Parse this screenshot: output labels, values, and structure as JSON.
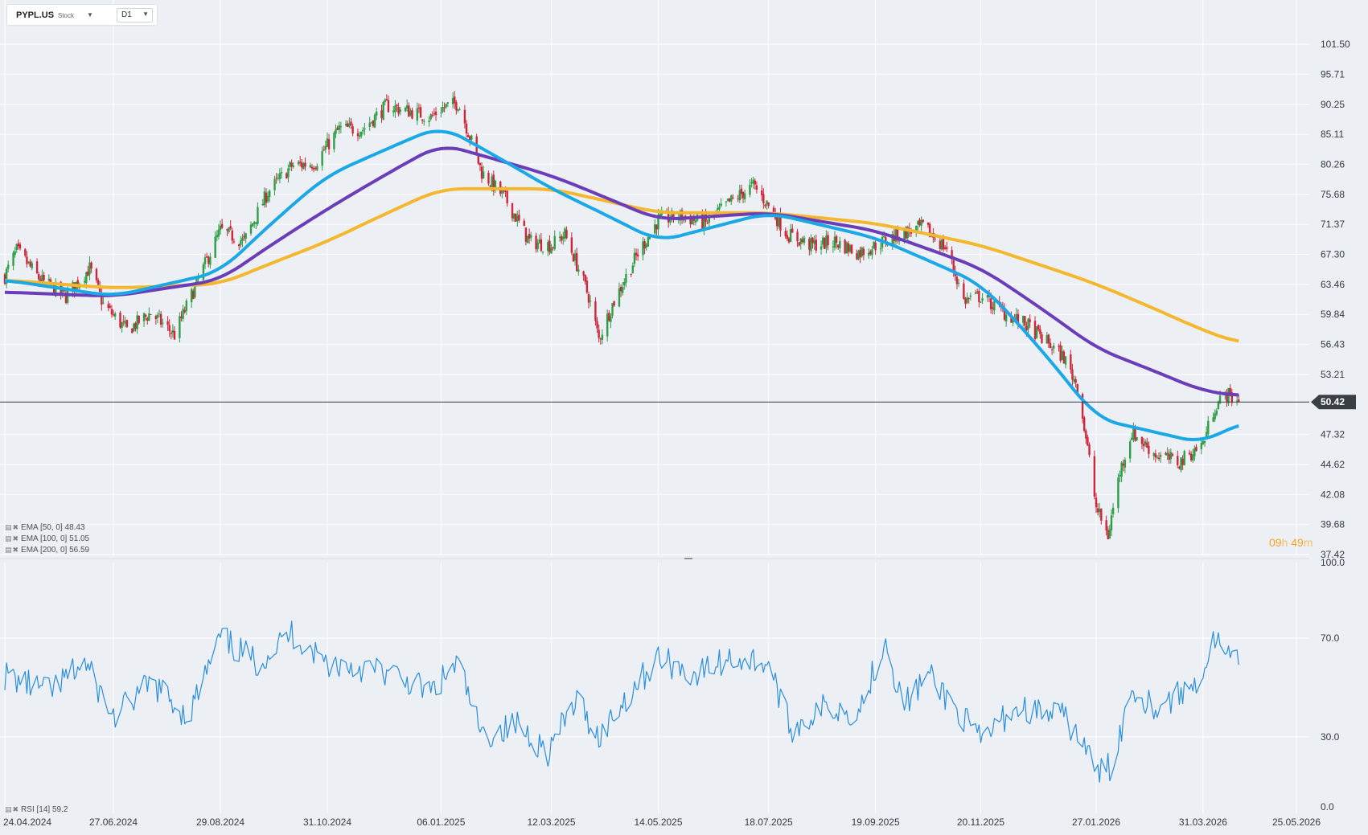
{
  "header": {
    "symbol": "PYPL.US",
    "asset_type": "Stock",
    "timeframe": "D1"
  },
  "price_axis": {
    "ticks": [
      "101.50",
      "95.71",
      "90.25",
      "85.11",
      "80.26",
      "75.68",
      "71.37",
      "67.30",
      "63.46",
      "59.84",
      "56.43",
      "53.21",
      "47.32",
      "44.62",
      "42.08",
      "39.68",
      "37.42"
    ],
    "tick_values": [
      101.5,
      95.71,
      90.25,
      85.11,
      80.26,
      75.68,
      71.37,
      67.3,
      63.46,
      59.84,
      56.43,
      53.21,
      47.32,
      44.62,
      42.08,
      39.68,
      37.42
    ],
    "scale": "log"
  },
  "current_price": {
    "label": "50.42",
    "value": 50.42
  },
  "countdown": {
    "hours": "09",
    "h_unit": "h",
    "minutes": "49",
    "m_unit": "m"
  },
  "legend": {
    "ema50": "EMA [50, 0] 48.43",
    "ema100": "EMA [100, 0] 51.05",
    "ema200": "EMA [200, 0] 56.59",
    "rsi": "RSI [14] 59.2"
  },
  "rsi_axis": {
    "ticks": [
      "100.0",
      "70.0",
      "30.0",
      "0.0"
    ],
    "tick_values": [
      100,
      70,
      30,
      0
    ]
  },
  "date_axis": {
    "labels": [
      "24.04.2024",
      "27.06.2024",
      "29.08.2024",
      "31.10.2024",
      "06.01.2025",
      "12.03.2025",
      "14.05.2025",
      "18.07.2025",
      "19.09.2025",
      "20.11.2025",
      "27.01.2026",
      "31.03.2026",
      "25.05.2026"
    ]
  },
  "colors": {
    "background": "#eceff3",
    "grid": "#ffffff",
    "candle_up": "#2e9e47",
    "candle_down": "#d0263c",
    "ema50": "#1ba8e6",
    "ema100": "#6b3db8",
    "ema200": "#f5b72e",
    "rsi_line": "#2b8fe0",
    "price_marker": "#3a3f46",
    "countdown": "#f5a623"
  },
  "chart_data": {
    "type": "candlestick",
    "interval": "D1",
    "x_start": "24.04.2024",
    "x_end": "25.05.2026",
    "last_price": 50.42,
    "price_path": [
      [
        "24.04.2024",
        64.5
      ],
      [
        "01.05.2024",
        67.8
      ],
      [
        "15.05.2024",
        64.0
      ],
      [
        "30.05.2024",
        62.0
      ],
      [
        "13.06.2024",
        65.5
      ],
      [
        "21.06.2024",
        61.0
      ],
      [
        "05.07.2024",
        58.0
      ],
      [
        "19.07.2024",
        60.0
      ],
      [
        "02.08.2024",
        57.5
      ],
      [
        "16.08.2024",
        64.0
      ],
      [
        "29.08.2024",
        70.5
      ],
      [
        "12.09.2024",
        69.0
      ],
      [
        "26.09.2024",
        76.0
      ],
      [
        "10.10.2024",
        80.0
      ],
      [
        "24.10.2024",
        80.5
      ],
      [
        "07.11.2024",
        86.0
      ],
      [
        "21.11.2024",
        86.0
      ],
      [
        "05.12.2024",
        90.0
      ],
      [
        "19.12.2024",
        89.0
      ],
      [
        "31.12.2024",
        88.0
      ],
      [
        "06.01.2025",
        89.5
      ],
      [
        "16.01.2025",
        90.5
      ],
      [
        "30.01.2025",
        79.0
      ],
      [
        "13.02.2025",
        75.0
      ],
      [
        "27.02.2025",
        69.0
      ],
      [
        "12.03.2025",
        68.5
      ],
      [
        "20.03.2025",
        70.0
      ],
      [
        "03.04.2025",
        62.0
      ],
      [
        "09.04.2025",
        57.0
      ],
      [
        "17.04.2025",
        61.0
      ],
      [
        "01.05.2025",
        67.0
      ],
      [
        "14.05.2025",
        72.0
      ],
      [
        "28.05.2025",
        72.5
      ],
      [
        "11.06.2025",
        71.5
      ],
      [
        "25.06.2025",
        74.5
      ],
      [
        "09.07.2025",
        77.0
      ],
      [
        "18.07.2025",
        74.0
      ],
      [
        "29.07.2025",
        70.0
      ],
      [
        "12.08.2025",
        68.5
      ],
      [
        "26.08.2025",
        69.0
      ],
      [
        "09.09.2025",
        67.5
      ],
      [
        "19.09.2025",
        68.5
      ],
      [
        "03.10.2025",
        70.0
      ],
      [
        "17.10.2025",
        71.0
      ],
      [
        "31.10.2025",
        68.0
      ],
      [
        "10.11.2025",
        61.5
      ],
      [
        "20.11.2025",
        62.0
      ],
      [
        "04.12.2025",
        60.0
      ],
      [
        "18.12.2025",
        58.5
      ],
      [
        "08.01.2026",
        55.0
      ],
      [
        "16.01.2026",
        52.0
      ],
      [
        "27.01.2026",
        41.0
      ],
      [
        "03.02.2026",
        38.8
      ],
      [
        "10.02.2026",
        44.0
      ],
      [
        "17.02.2026",
        47.5
      ],
      [
        "03.03.2026",
        45.5
      ],
      [
        "17.03.2026",
        44.8
      ],
      [
        "31.03.2026",
        46.5
      ],
      [
        "07.04.2026",
        50.0
      ],
      [
        "14.04.2026",
        51.2
      ],
      [
        "21.04.2026",
        50.42
      ]
    ],
    "ema50_path": [
      [
        "24.04.2024",
        64.0
      ],
      [
        "27.06.2024",
        62.0
      ],
      [
        "29.08.2024",
        65.0
      ],
      [
        "31.10.2024",
        78.5
      ],
      [
        "06.01.2025",
        86.5
      ],
      [
        "12.03.2025",
        76.5
      ],
      [
        "14.05.2025",
        69.0
      ],
      [
        "18.07.2025",
        73.0
      ],
      [
        "19.09.2025",
        69.5
      ],
      [
        "20.11.2025",
        63.5
      ],
      [
        "27.01.2026",
        48.8
      ],
      [
        "31.03.2026",
        46.5
      ],
      [
        "21.04.2026",
        48.43
      ]
    ],
    "ema100_path": [
      [
        "24.04.2024",
        62.5
      ],
      [
        "27.06.2024",
        62.0
      ],
      [
        "29.08.2024",
        64.0
      ],
      [
        "31.10.2024",
        73.5
      ],
      [
        "06.01.2025",
        83.5
      ],
      [
        "12.03.2025",
        78.5
      ],
      [
        "14.05.2025",
        72.0
      ],
      [
        "18.07.2025",
        73.0
      ],
      [
        "19.09.2025",
        70.5
      ],
      [
        "20.11.2025",
        65.5
      ],
      [
        "27.01.2026",
        56.0
      ],
      [
        "31.03.2026",
        51.5
      ],
      [
        "21.04.2026",
        51.05
      ]
    ],
    "ema200_path": [
      [
        "24.04.2024",
        64.0
      ],
      [
        "27.06.2024",
        63.0
      ],
      [
        "29.08.2024",
        63.5
      ],
      [
        "31.10.2024",
        69.0
      ],
      [
        "06.01.2025",
        76.5
      ],
      [
        "12.03.2025",
        76.5
      ],
      [
        "14.05.2025",
        73.0
      ],
      [
        "18.07.2025",
        73.0
      ],
      [
        "19.09.2025",
        71.5
      ],
      [
        "20.11.2025",
        68.5
      ],
      [
        "27.01.2026",
        63.5
      ],
      [
        "31.03.2026",
        58.0
      ],
      [
        "21.04.2026",
        56.59
      ]
    ],
    "rsi_path": [
      [
        "24.04.2024",
        55
      ],
      [
        "20.05.2024",
        48
      ],
      [
        "10.06.2024",
        60
      ],
      [
        "27.06.2024",
        38
      ],
      [
        "20.07.2024",
        52
      ],
      [
        "10.08.2024",
        38
      ],
      [
        "29.08.2024",
        70
      ],
      [
        "20.09.2024",
        60
      ],
      [
        "10.10.2024",
        72
      ],
      [
        "31.10.2024",
        60
      ],
      [
        "20.11.2024",
        58
      ],
      [
        "10.12.2024",
        55
      ],
      [
        "31.12.2024",
        48
      ],
      [
        "16.01.2025",
        60
      ],
      [
        "30.01.2025",
        30
      ],
      [
        "20.02.2025",
        35
      ],
      [
        "10.03.2025",
        24
      ],
      [
        "27.03.2025",
        45
      ],
      [
        "09.04.2025",
        30
      ],
      [
        "25.04.2025",
        46
      ],
      [
        "14.05.2025",
        62
      ],
      [
        "05.06.2025",
        55
      ],
      [
        "25.06.2025",
        62
      ],
      [
        "18.07.2025",
        60
      ],
      [
        "31.07.2025",
        33
      ],
      [
        "20.08.2025",
        42
      ],
      [
        "09.09.2025",
        40
      ],
      [
        "25.09.2025",
        70
      ],
      [
        "05.10.2025",
        42
      ],
      [
        "20.10.2025",
        55
      ],
      [
        "05.11.2025",
        42
      ],
      [
        "20.11.2025",
        28
      ],
      [
        "10.12.2025",
        42
      ],
      [
        "07.01.2026",
        38
      ],
      [
        "18.01.2026",
        30
      ],
      [
        "27.01.2026",
        15
      ],
      [
        "05.02.2026",
        18
      ],
      [
        "17.02.2026",
        50
      ],
      [
        "03.03.2026",
        42
      ],
      [
        "20.03.2026",
        48
      ],
      [
        "31.03.2026",
        56
      ],
      [
        "07.04.2026",
        70
      ],
      [
        "14.04.2026",
        62
      ],
      [
        "21.04.2026",
        59.2
      ]
    ],
    "ema_legend": {
      "EMA [50, 0]": 48.43,
      "EMA [100, 0]": 51.05,
      "EMA [200, 0]": 56.59
    },
    "rsi_period": 14,
    "rsi_last": 59.2,
    "rsi_range": [
      0,
      100
    ]
  }
}
